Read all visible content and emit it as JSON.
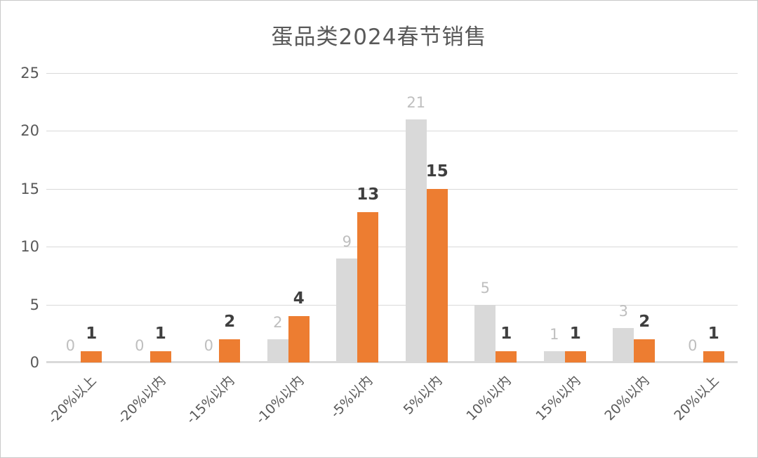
{
  "title": "蛋品类2024春节销售",
  "colors": {
    "orange_series": "#ed7d31",
    "gray_series": "#d9d9d9",
    "gray_label": "#bfbfbf",
    "dark_label": "#3f3f3f",
    "axis_text": "#595959",
    "gridline": "#d9d9d9"
  },
  "chart_data": {
    "type": "bar",
    "title": "蛋品类2024春节销售",
    "categories": [
      "-20%以上",
      "-20%以内",
      "-15%以内",
      "-10%以内",
      "-5%以内",
      "5%以内",
      "10%以内",
      "15%以内",
      "20%以内",
      "20%以上"
    ],
    "series": [
      {
        "name": "gray-series",
        "color": "#d9d9d9",
        "label_color": "#bfbfbf",
        "values": [
          0,
          0,
          0,
          2,
          9,
          21,
          5,
          1,
          3,
          0
        ]
      },
      {
        "name": "orange-series",
        "color": "#ed7d31",
        "label_color": "#3f3f3f",
        "values": [
          1,
          1,
          2,
          4,
          13,
          15,
          1,
          1,
          2,
          1
        ]
      }
    ],
    "xlabel": "",
    "ylabel": "",
    "ylim": [
      0,
      25
    ],
    "yticks": [
      0,
      5,
      10,
      15,
      20,
      25
    ],
    "grid": true,
    "legend_position": "none",
    "data_labels": true
  }
}
